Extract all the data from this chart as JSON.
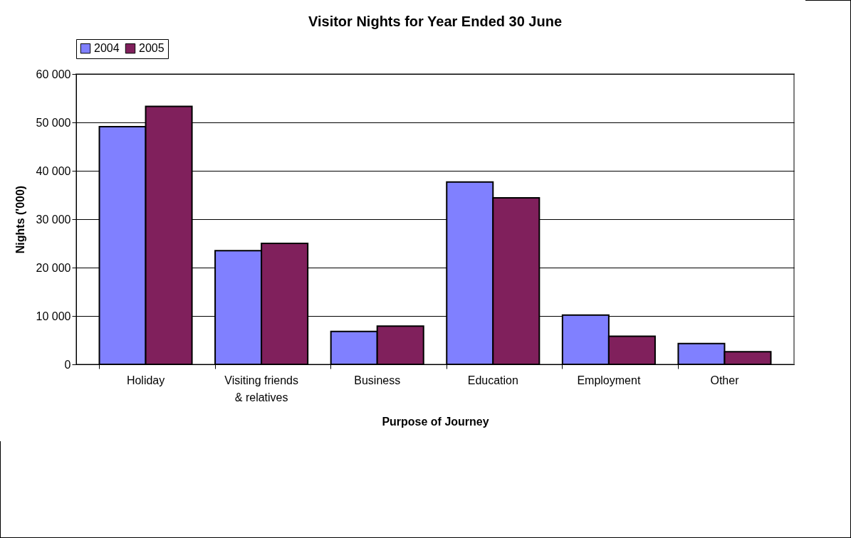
{
  "chart_data": {
    "type": "bar",
    "title": "Visitor Nights for Year Ended 30 June",
    "xlabel": "Purpose of Journey",
    "ylabel": "Nights ('000)",
    "categories": [
      "Holiday",
      "Visiting friends & relatives",
      "Business",
      "Education",
      "Employment",
      "Other"
    ],
    "series": [
      {
        "name": "2004",
        "color": "#8080ff",
        "values": [
          49100,
          23500,
          6800,
          37700,
          10200,
          4300
        ]
      },
      {
        "name": "2005",
        "color": "#80205c",
        "values": [
          53300,
          25000,
          7900,
          34400,
          5800,
          2600
        ]
      }
    ],
    "ylim": [
      0,
      60000
    ],
    "yticks": [
      {
        "value": 0,
        "label": "0"
      },
      {
        "value": 10000,
        "label": "10 000"
      },
      {
        "value": 20000,
        "label": "20 000"
      },
      {
        "value": 30000,
        "label": "30 000"
      },
      {
        "value": 40000,
        "label": "40 000"
      },
      {
        "value": 50000,
        "label": "50 000"
      },
      {
        "value": 60000,
        "label": "60 000"
      }
    ],
    "grid": "y",
    "legend": "top"
  }
}
